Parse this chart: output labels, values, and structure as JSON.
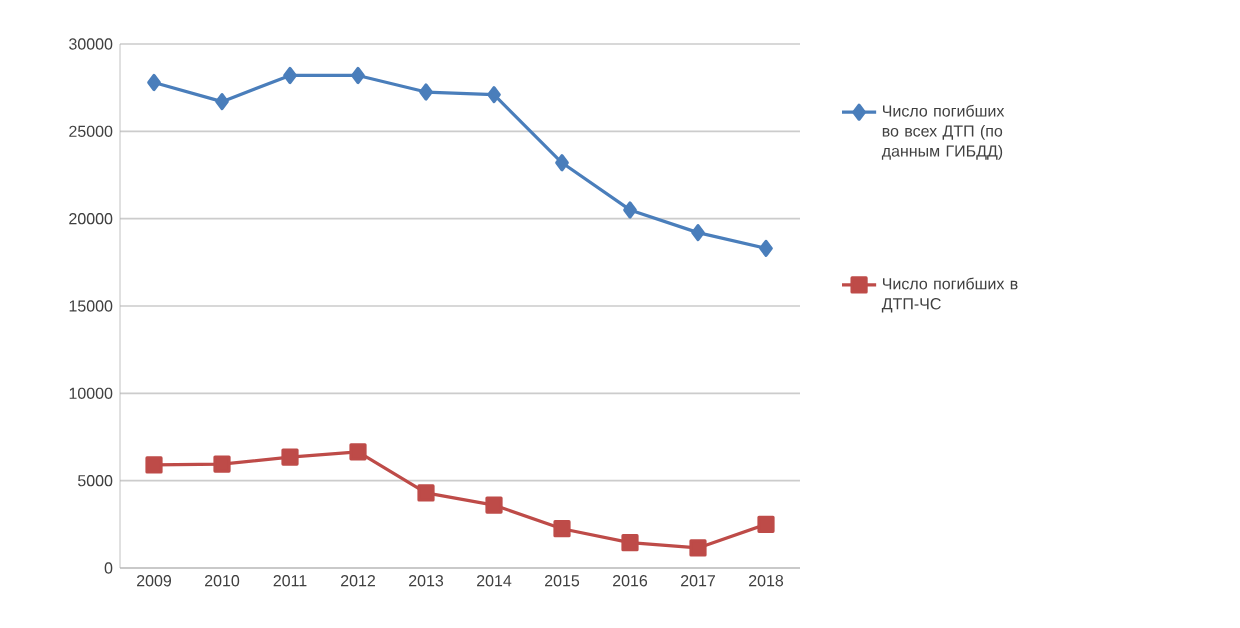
{
  "chart_data": {
    "type": "line",
    "categories": [
      "2009",
      "2010",
      "2011",
      "2012",
      "2013",
      "2014",
      "2015",
      "2016",
      "2017",
      "2018"
    ],
    "series": [
      {
        "name": "Число погибших во всех ДТП (по данным ГИБДД)",
        "color": "#4a7ebb",
        "marker": "diamond",
        "values": [
          27800,
          26700,
          28200,
          28200,
          27250,
          27100,
          23200,
          20500,
          19200,
          18300
        ]
      },
      {
        "name": "Число погибших в ДТП-ЧС",
        "color": "#be4b48",
        "marker": "square",
        "values": [
          5900,
          5950,
          6350,
          6650,
          4300,
          3600,
          2250,
          1450,
          1150,
          2500
        ]
      }
    ],
    "ylim": [
      0,
      30000
    ],
    "yticks": [
      0,
      5000,
      10000,
      15000,
      20000,
      25000,
      30000
    ],
    "grid": "y",
    "legend": "right",
    "line_style": "solid"
  }
}
